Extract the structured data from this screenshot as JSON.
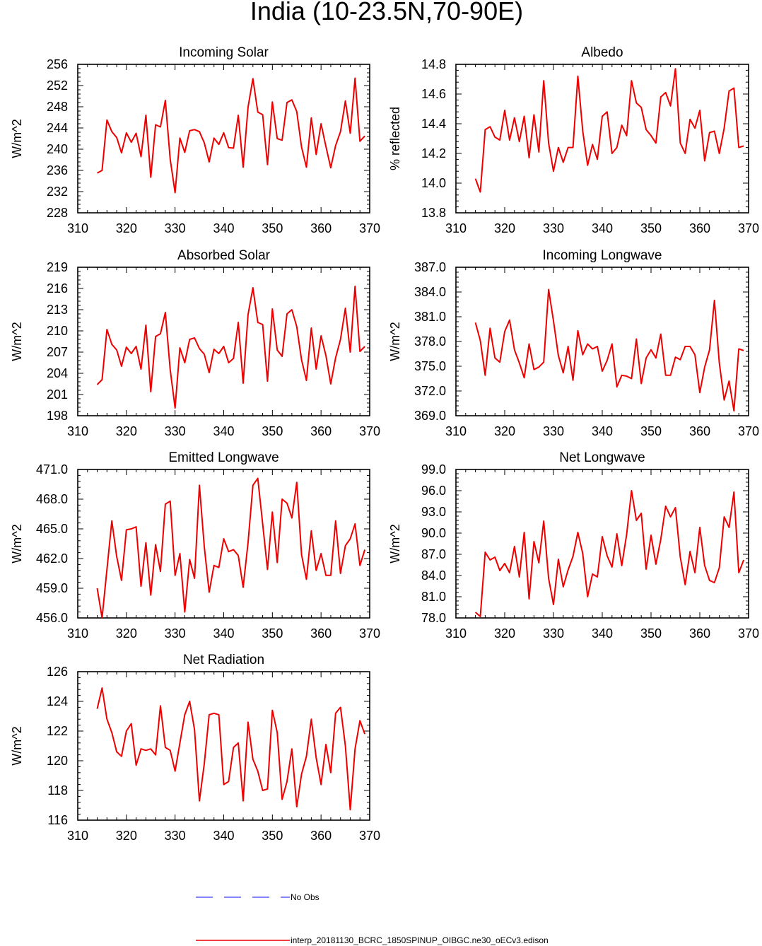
{
  "figure": {
    "title": "India (10-23.5N,70-90E)",
    "legend": [
      {
        "label": "No Obs",
        "color": "#3a3aff",
        "style": "dashed"
      },
      {
        "label": "interp_20181130_BCRC_1850SPINUP_OIBGC.ne30_oECv3.edison",
        "color": "#ee0000",
        "style": "solid"
      }
    ]
  },
  "chart_data": [
    {
      "type": "line",
      "title": "Incoming Solar",
      "ylabel": "W/m^2",
      "xlim": [
        310,
        370
      ],
      "ylim": [
        228,
        256
      ],
      "xticks": [
        "310",
        "320",
        "330",
        "340",
        "350",
        "360",
        "370"
      ],
      "yticks": [
        "228",
        "232",
        "236",
        "240",
        "244",
        "248",
        "252",
        "256"
      ],
      "series": [
        {
          "color": "#ee0000",
          "x": [
            314,
            315,
            316,
            317,
            318,
            319,
            320,
            321,
            322,
            323,
            324,
            325,
            326,
            327,
            328,
            329,
            330,
            331,
            332,
            333,
            334,
            335,
            336,
            337,
            338,
            339,
            340,
            341,
            342,
            343,
            344,
            345,
            346,
            347,
            348,
            349,
            350,
            351,
            352,
            353,
            354,
            355,
            356,
            357,
            358,
            359,
            360,
            361,
            362,
            363,
            364,
            365,
            366,
            367,
            368,
            369
          ],
          "y": [
            235.5,
            236,
            245.5,
            243.3,
            242.2,
            239.3,
            243.1,
            241.3,
            243,
            238.6,
            246.4,
            234.7,
            244.6,
            244.2,
            249.2,
            238.1,
            231.8,
            242.1,
            239.4,
            243.5,
            243.7,
            243.3,
            241.2,
            237.6,
            242.1,
            240.9,
            243.1,
            240.3,
            240.2,
            246.4,
            236.6,
            247.9,
            253.3,
            247,
            246.5,
            237.1,
            248.9,
            242,
            241.7,
            248.8,
            249.3,
            247.1,
            240.4,
            236.6,
            245.9,
            239,
            244.8,
            240.5,
            236.5,
            240.7,
            243.3,
            249.1,
            243,
            253.4,
            241.5,
            242.5
          ]
        }
      ]
    },
    {
      "type": "line",
      "title": "Albedo",
      "ylabel": "% reflected",
      "xlim": [
        310,
        370
      ],
      "ylim": [
        13.8,
        14.8
      ],
      "xticks": [
        "310",
        "320",
        "330",
        "340",
        "350",
        "360",
        "370"
      ],
      "yticks": [
        "13.8",
        "14.0",
        "14.2",
        "14.4",
        "14.6",
        "14.8"
      ],
      "series": [
        {
          "color": "#ee0000",
          "x": [
            314,
            315,
            316,
            317,
            318,
            319,
            320,
            321,
            322,
            323,
            324,
            325,
            326,
            327,
            328,
            329,
            330,
            331,
            332,
            333,
            334,
            335,
            336,
            337,
            338,
            339,
            340,
            341,
            342,
            343,
            344,
            345,
            346,
            347,
            348,
            349,
            350,
            351,
            352,
            353,
            354,
            355,
            356,
            357,
            358,
            359,
            360,
            361,
            362,
            363,
            364,
            365,
            366,
            367,
            368,
            369
          ],
          "y": [
            14.03,
            13.94,
            14.36,
            14.38,
            14.31,
            14.29,
            14.49,
            14.29,
            14.44,
            14.28,
            14.45,
            14.17,
            14.46,
            14.21,
            14.69,
            14.27,
            14.08,
            14.24,
            14.14,
            14.24,
            14.24,
            14.72,
            14.35,
            14.12,
            14.26,
            14.16,
            14.45,
            14.48,
            14.2,
            14.24,
            14.39,
            14.32,
            14.69,
            14.54,
            14.51,
            14.36,
            14.32,
            14.27,
            14.58,
            14.61,
            14.52,
            14.77,
            14.27,
            14.2,
            14.43,
            14.37,
            14.49,
            14.15,
            14.34,
            14.35,
            14.2,
            14.37,
            14.62,
            14.64,
            14.24,
            14.25
          ]
        }
      ]
    },
    {
      "type": "line",
      "title": "Absorbed Solar",
      "ylabel": "W/m^2",
      "xlim": [
        310,
        370
      ],
      "ylim": [
        198,
        219
      ],
      "xticks": [
        "310",
        "320",
        "330",
        "340",
        "350",
        "360",
        "370"
      ],
      "yticks": [
        "198",
        "201",
        "204",
        "207",
        "210",
        "213",
        "216",
        "219"
      ],
      "series": [
        {
          "color": "#ee0000",
          "x": [
            314,
            315,
            316,
            317,
            318,
            319,
            320,
            321,
            322,
            323,
            324,
            325,
            326,
            327,
            328,
            329,
            330,
            331,
            332,
            333,
            334,
            335,
            336,
            337,
            338,
            339,
            340,
            341,
            342,
            343,
            344,
            345,
            346,
            347,
            348,
            349,
            350,
            351,
            352,
            353,
            354,
            355,
            356,
            357,
            358,
            359,
            360,
            361,
            362,
            363,
            364,
            365,
            366,
            367,
            368,
            369
          ],
          "y": [
            202.4,
            203.1,
            210.2,
            208.1,
            207.3,
            205,
            207.7,
            206.8,
            207.8,
            204.6,
            210.8,
            201.4,
            209.2,
            209.6,
            212.6,
            204.5,
            199.1,
            207.6,
            205.5,
            208.8,
            209,
            207.5,
            206.7,
            204.1,
            207.4,
            206.8,
            207.8,
            205.5,
            206.1,
            211.2,
            202.6,
            212.3,
            216.1,
            211.2,
            210.9,
            202.9,
            213.1,
            207.3,
            206.4,
            212.4,
            213,
            210.6,
            205.9,
            203,
            210.4,
            204.6,
            209.3,
            206.5,
            202.5,
            206.2,
            208.8,
            213.2,
            207,
            216.3,
            207.1,
            207.8
          ]
        }
      ]
    },
    {
      "type": "line",
      "title": "Incoming Longwave",
      "ylabel": "W/m^2",
      "xlim": [
        310,
        370
      ],
      "ylim": [
        369.0,
        387.0
      ],
      "xticks": [
        "310",
        "320",
        "330",
        "340",
        "350",
        "360",
        "370"
      ],
      "yticks": [
        "369.0",
        "372.0",
        "375.0",
        "378.0",
        "381.0",
        "384.0",
        "387.0"
      ],
      "series": [
        {
          "color": "#ee0000",
          "x": [
            314,
            315,
            316,
            317,
            318,
            319,
            320,
            321,
            322,
            323,
            324,
            325,
            326,
            327,
            328,
            329,
            330,
            331,
            332,
            333,
            334,
            335,
            336,
            337,
            338,
            339,
            340,
            341,
            342,
            343,
            344,
            345,
            346,
            347,
            348,
            349,
            350,
            351,
            352,
            353,
            354,
            355,
            356,
            357,
            358,
            359,
            360,
            361,
            362,
            363,
            364,
            365,
            366,
            367,
            368,
            369
          ],
          "y": [
            380.3,
            378.1,
            373.9,
            379.6,
            376,
            375.5,
            379.2,
            380.6,
            377,
            375.4,
            373.6,
            377.7,
            374.6,
            374.9,
            375.5,
            384.3,
            380.5,
            376.3,
            374.2,
            377.4,
            373.3,
            379.3,
            376.4,
            377.7,
            377.1,
            377.4,
            374.4,
            375.7,
            377.7,
            372.5,
            373.9,
            373.8,
            373.5,
            378.3,
            372.9,
            376,
            377,
            376,
            378.9,
            373.9,
            373.9,
            376.1,
            375.8,
            377.4,
            377.4,
            376.4,
            371.8,
            374.9,
            377,
            383,
            375.4,
            370.9,
            373.2,
            369.6,
            377.1,
            376.9
          ]
        }
      ]
    },
    {
      "type": "line",
      "title": "Emitted Longwave",
      "ylabel": "W/m^2",
      "xlim": [
        310,
        370
      ],
      "ylim": [
        456.0,
        471.0
      ],
      "xticks": [
        "310",
        "320",
        "330",
        "340",
        "350",
        "360",
        "370"
      ],
      "yticks": [
        "456.0",
        "459.0",
        "462.0",
        "465.0",
        "468.0",
        "471.0"
      ],
      "series": [
        {
          "color": "#ee0000",
          "x": [
            314,
            315,
            316,
            317,
            318,
            319,
            320,
            321,
            322,
            323,
            324,
            325,
            326,
            327,
            328,
            329,
            330,
            331,
            332,
            333,
            334,
            335,
            336,
            337,
            338,
            339,
            340,
            341,
            342,
            343,
            344,
            345,
            346,
            347,
            348,
            349,
            350,
            351,
            352,
            353,
            354,
            355,
            356,
            357,
            358,
            359,
            360,
            361,
            362,
            363,
            364,
            365,
            366,
            367,
            368,
            369
          ],
          "y": [
            459,
            456,
            460.9,
            465.8,
            462.2,
            459.8,
            464.9,
            465,
            465.2,
            459.2,
            463.6,
            458.3,
            463.4,
            460.7,
            467.5,
            467.8,
            460.3,
            462.5,
            456.6,
            461.9,
            460,
            469.4,
            463.2,
            458.6,
            461.3,
            461.1,
            464,
            462.7,
            462.9,
            462.3,
            459.1,
            463.6,
            469.4,
            470.1,
            465.5,
            460.9,
            466.7,
            461.6,
            468,
            467.6,
            466.1,
            469.7,
            462.4,
            459.9,
            464.8,
            460.8,
            462.5,
            460.3,
            460.3,
            465.8,
            460.5,
            463.3,
            464,
            465.5,
            461.3,
            462.9
          ]
        }
      ]
    },
    {
      "type": "line",
      "title": "Net Longwave",
      "ylabel": "W/m^2",
      "xlim": [
        310,
        370
      ],
      "ylim": [
        78.0,
        99.0
      ],
      "xticks": [
        "310",
        "320",
        "330",
        "340",
        "350",
        "360",
        "370"
      ],
      "yticks": [
        "78.0",
        "81.0",
        "84.0",
        "87.0",
        "90.0",
        "93.0",
        "96.0",
        "99.0"
      ],
      "series": [
        {
          "color": "#ee0000",
          "x": [
            314,
            315,
            316,
            317,
            318,
            319,
            320,
            321,
            322,
            323,
            324,
            325,
            326,
            327,
            328,
            329,
            330,
            331,
            332,
            333,
            334,
            335,
            336,
            337,
            338,
            339,
            340,
            341,
            342,
            343,
            344,
            345,
            346,
            347,
            348,
            349,
            350,
            351,
            352,
            353,
            354,
            355,
            356,
            357,
            358,
            359,
            360,
            361,
            362,
            363,
            364,
            365,
            366,
            367,
            368,
            369
          ],
          "y": [
            78.8,
            78.2,
            87.3,
            86.2,
            86.6,
            84.7,
            85.7,
            84.4,
            88.1,
            83.8,
            90.1,
            80.7,
            88.8,
            85.8,
            91.7,
            83.6,
            79.9,
            86.3,
            82.4,
            84.8,
            86.7,
            90.1,
            87.1,
            81,
            84.2,
            83.8,
            89.5,
            86.8,
            85.2,
            89.9,
            85.4,
            89.8,
            96,
            91.8,
            92.8,
            84.9,
            89.7,
            85.6,
            89.1,
            93.8,
            92.3,
            93.6,
            86.6,
            82.7,
            87.4,
            84.4,
            90.8,
            85.4,
            83.3,
            83,
            85.1,
            92.3,
            90.8,
            95.8,
            84.4,
            86.2
          ]
        }
      ]
    },
    {
      "type": "line",
      "title": "Net Radiation",
      "ylabel": "W/m^2",
      "xlim": [
        310,
        370
      ],
      "ylim": [
        116,
        126
      ],
      "xticks": [
        "310",
        "320",
        "330",
        "340",
        "350",
        "360",
        "370"
      ],
      "yticks": [
        "116",
        "118",
        "120",
        "122",
        "124",
        "126"
      ],
      "series": [
        {
          "color": "#ee0000",
          "x": [
            314,
            315,
            316,
            317,
            318,
            319,
            320,
            321,
            322,
            323,
            324,
            325,
            326,
            327,
            328,
            329,
            330,
            331,
            332,
            333,
            334,
            335,
            336,
            337,
            338,
            339,
            340,
            341,
            342,
            343,
            344,
            345,
            346,
            347,
            348,
            349,
            350,
            351,
            352,
            353,
            354,
            355,
            356,
            357,
            358,
            359,
            360,
            361,
            362,
            363,
            364,
            365,
            366,
            367,
            368,
            369
          ],
          "y": [
            123.5,
            124.9,
            122.8,
            121.9,
            120.6,
            120.3,
            122,
            122.5,
            119.7,
            120.8,
            120.7,
            120.8,
            120.4,
            123.7,
            120.9,
            120.7,
            119.3,
            121.2,
            123.1,
            124,
            122.1,
            117.3,
            119.8,
            123.1,
            123.2,
            123.1,
            118.4,
            118.6,
            120.9,
            121.2,
            117.3,
            122.6,
            120.1,
            119.3,
            118,
            118.1,
            123.4,
            121.9,
            117.4,
            118.6,
            120.8,
            116.9,
            119.1,
            120.3,
            122.8,
            120.2,
            118.4,
            121.1,
            119.2,
            123.2,
            123.6,
            121,
            116.7,
            120.8,
            122.7,
            121.8
          ]
        }
      ]
    }
  ]
}
